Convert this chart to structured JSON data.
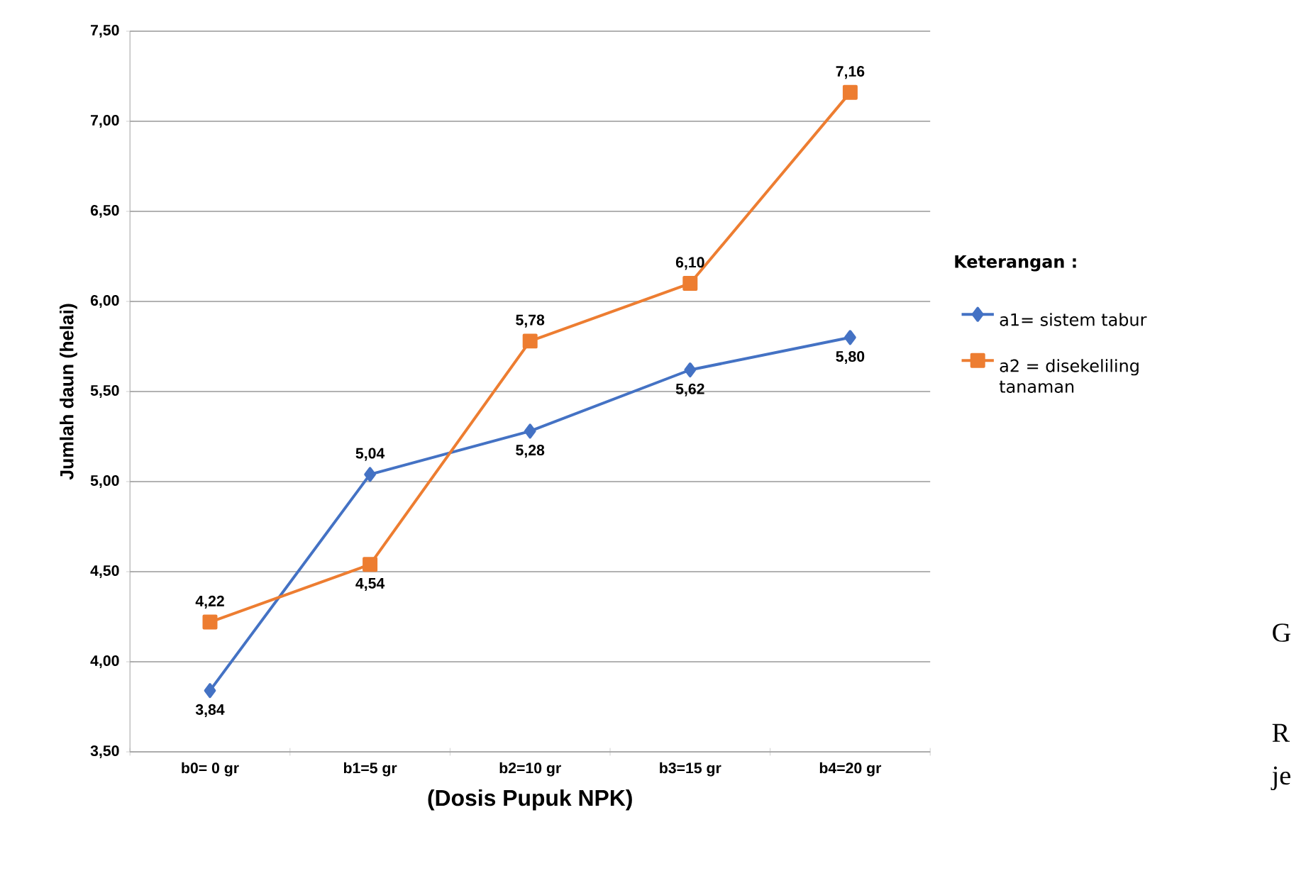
{
  "chart_data": {
    "type": "line",
    "xlabel": "(Dosis Pupuk NPK)",
    "ylabel": "Jumlah daun (helai)",
    "legend_title": "Keterangan :",
    "categories": [
      "b0= 0 gr",
      "b1=5 gr",
      "b2=10 gr",
      "b3=15 gr",
      "b4=20 gr"
    ],
    "series": [
      {
        "name": "a1= sistem tabur",
        "color": "#4472c4",
        "marker": "diamond",
        "values": [
          3.84,
          5.04,
          5.28,
          5.62,
          5.8
        ],
        "value_labels": [
          "3,84",
          "5,04",
          "5,28",
          "5,62",
          "5,80"
        ]
      },
      {
        "name": "a2 = disekeliling tanaman",
        "color": "#ed7d31",
        "marker": "square",
        "values": [
          4.22,
          4.54,
          5.78,
          6.1,
          7.16
        ],
        "value_labels": [
          "4,22",
          "4,54",
          "5,78",
          "6,10",
          "7,16"
        ]
      }
    ],
    "ylim": [
      3.5,
      7.5
    ],
    "yticks": [
      {
        "value": 3.5,
        "label": "3,50"
      },
      {
        "value": 4.0,
        "label": "4,00"
      },
      {
        "value": 4.5,
        "label": "4,50"
      },
      {
        "value": 5.0,
        "label": "5,00"
      },
      {
        "value": 5.5,
        "label": "5,50"
      },
      {
        "value": 6.0,
        "label": "6,00"
      },
      {
        "value": 6.5,
        "label": "6,50"
      },
      {
        "value": 7.0,
        "label": "7,00"
      },
      {
        "value": 7.5,
        "label": "7,50"
      }
    ],
    "grid": "y",
    "legend": "right",
    "line_style": "solid",
    "annotations": [
      "G",
      "R",
      "je"
    ]
  }
}
